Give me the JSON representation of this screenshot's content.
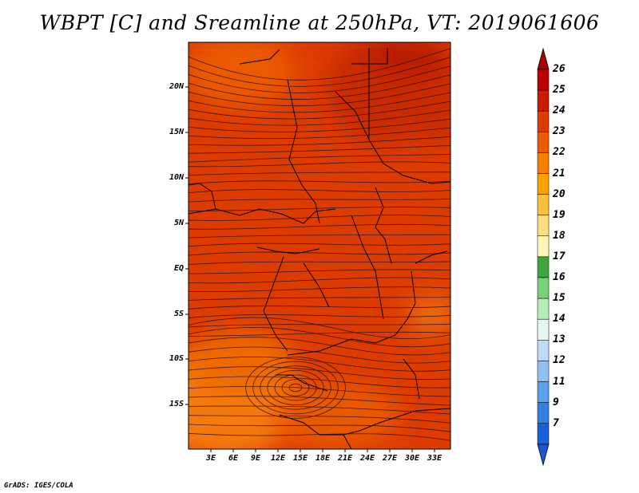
{
  "title": "WBPT [C] and Sreamline at 250hPa, VT: 2019061606",
  "footer": "GrADS: IGES/COLA",
  "lat_labels": [
    "20N",
    "15N",
    "10N",
    "5N",
    "EQ",
    "5S",
    "10S",
    "15S"
  ],
  "lon_labels": [
    "3E",
    "6E",
    "9E",
    "12E",
    "15E",
    "18E",
    "21E",
    "24E",
    "27E",
    "30E",
    "33E"
  ],
  "colorbar": {
    "labels": [
      "26",
      "25",
      "24",
      "23",
      "22",
      "21",
      "20",
      "19",
      "18",
      "17",
      "16",
      "15",
      "14",
      "13",
      "12",
      "11",
      "9",
      "7"
    ],
    "colors": [
      "#b80000",
      "#c81c00",
      "#dc3c00",
      "#ee5a00",
      "#f77f00",
      "#fca200",
      "#fcc13c",
      "#fcdc80",
      "#fff5b8",
      "#3ea83e",
      "#78d278",
      "#b4ecb4",
      "#e6f8f4",
      "#bedcf8",
      "#8ec0f0",
      "#5aa0ea",
      "#3680e2",
      "#1a60d8"
    ],
    "arrow_top_color": "#a80000",
    "arrow_bottom_color": "#1a56d0"
  }
}
